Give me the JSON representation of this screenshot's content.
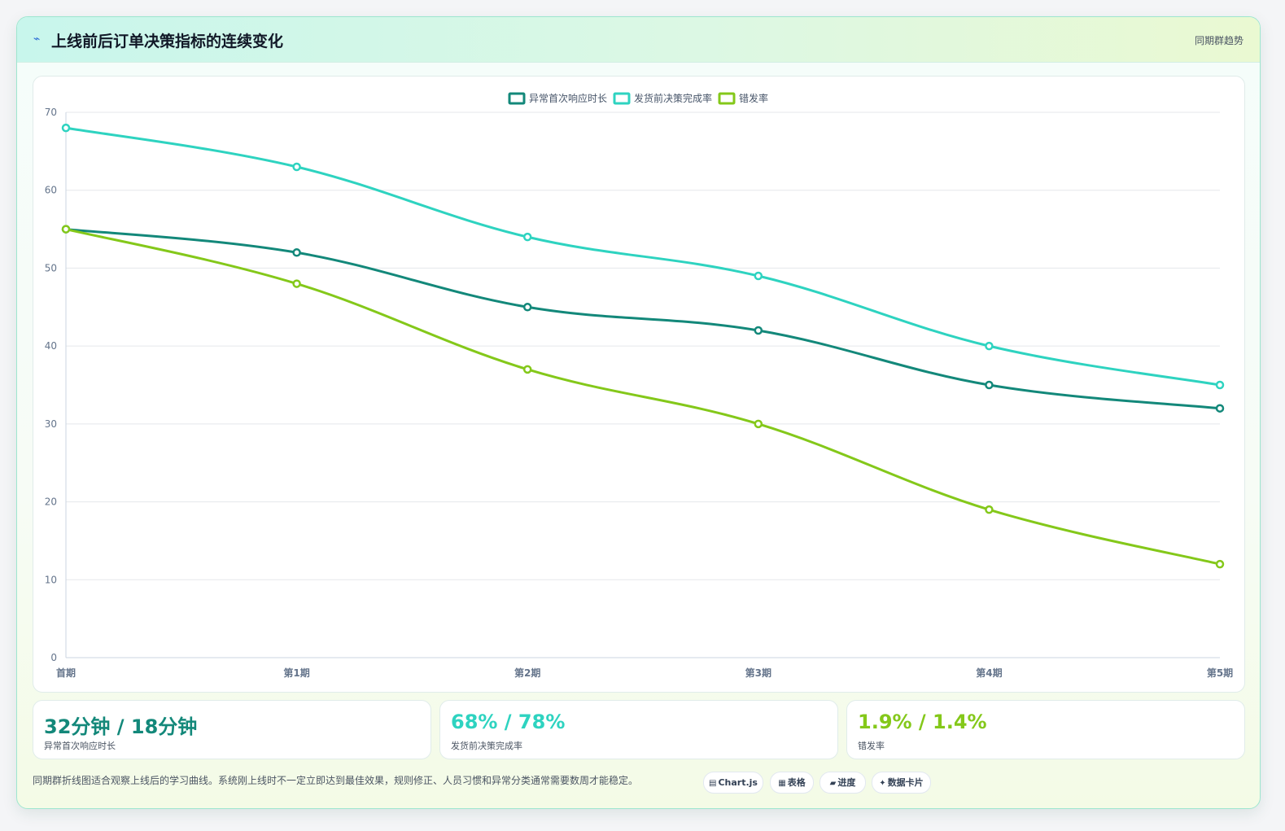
{
  "header": {
    "icon": "lightning-icon",
    "title": "上线前后订单决策指标的连续变化",
    "right_label": "同期群趋势"
  },
  "chart_data": {
    "type": "line",
    "categories": [
      "首期",
      "第1期",
      "第2期",
      "第3期",
      "第4期",
      "第5期"
    ],
    "series": [
      {
        "name": "异常首次响应时长",
        "color": "#13887a",
        "values": [
          55,
          52,
          45,
          42,
          35,
          32
        ]
      },
      {
        "name": "发货前决策完成率",
        "color": "#2ed3c0",
        "values": [
          68,
          63,
          54,
          49,
          40,
          35
        ]
      },
      {
        "name": "错发率",
        "color": "#84c81a",
        "values": [
          55,
          48,
          37,
          30,
          19,
          12
        ]
      }
    ],
    "ylim": [
      0,
      70
    ],
    "yticks": [
      0,
      10,
      20,
      30,
      40,
      50,
      60,
      70
    ],
    "xlabel": "",
    "ylabel": "",
    "grid": true,
    "legend": "top-center"
  },
  "kpis": [
    {
      "value": "32分钟 / 18分钟",
      "label": "异常首次响应时长",
      "color": "#13887a"
    },
    {
      "value": "68% / 78%",
      "label": "发货前决策完成率",
      "color": "#2ed3c0"
    },
    {
      "value": "1.9% / 1.4%",
      "label": "错发率",
      "color": "#84c81a"
    }
  ],
  "footer": {
    "note": "同期群折线图适合观察上线后的学习曲线。系统刚上线时不一定立即达到最佳效果，规则修正、人员习惯和异常分类通常需要数周才能稳定。",
    "tags": [
      {
        "icon": "chart-icon",
        "glyph": "▤",
        "label": "Chart.js"
      },
      {
        "icon": "table-icon",
        "glyph": "▦",
        "label": "表格"
      },
      {
        "icon": "progress-icon",
        "glyph": "▰",
        "label": "进度"
      },
      {
        "icon": "sparkle-icon",
        "glyph": "✦",
        "label": "数据卡片"
      }
    ]
  }
}
